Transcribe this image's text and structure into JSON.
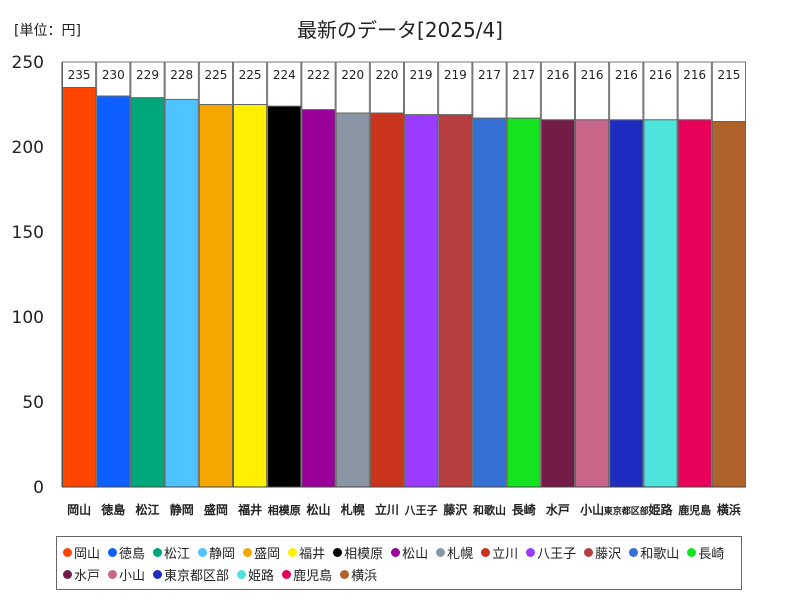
{
  "chart_data": {
    "type": "bar",
    "title": "最新のデータ[2025/4]",
    "unit_label": "[単位：円]",
    "ylim": [
      0,
      250
    ],
    "yticks": [
      "0",
      "50",
      "100",
      "150",
      "200",
      "250"
    ],
    "grid": false,
    "legend": "bottom",
    "categories": [
      "岡山",
      "徳島",
      "松江",
      "静岡",
      "盛岡",
      "福井",
      "相模原",
      "松山",
      "札幌",
      "立川",
      "八王子",
      "藤沢",
      "和歌山",
      "長崎",
      "水戸",
      "小山",
      "東京都区部",
      "姫路",
      "鹿児島",
      "横浜"
    ],
    "values": [
      235,
      230,
      229,
      228,
      225,
      225,
      224,
      222,
      220,
      220,
      219,
      219,
      217,
      217,
      216,
      216,
      216,
      216,
      216,
      215
    ],
    "colors": [
      "#ff4500",
      "#0d5fff",
      "#00a77a",
      "#4fc3ff",
      "#f5a700",
      "#ffef00",
      "#000000",
      "#990099",
      "#8a96a3",
      "#c9341d",
      "#9a3cff",
      "#b73e3e",
      "#3570d4",
      "#14e320",
      "#741b47",
      "#c9678a",
      "#1e2dbf",
      "#4ee4de",
      "#e8005a",
      "#b0622b"
    ]
  }
}
